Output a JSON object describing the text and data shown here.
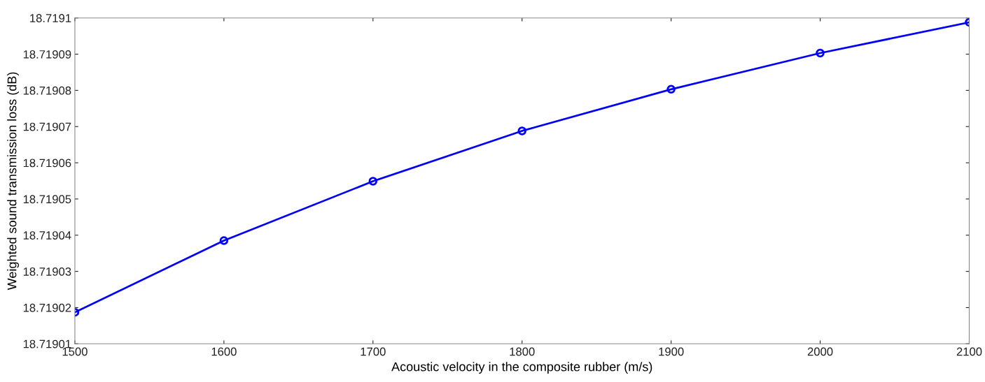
{
  "chart_data": {
    "type": "line",
    "xlabel": "Acoustic velocity in the composite rubber (m/s)",
    "ylabel": "Weighted sound transmission loss (dB)",
    "x": [
      1500,
      1600,
      1700,
      1800,
      1900,
      2000,
      2100
    ],
    "series": [
      {
        "color": "#0000ff",
        "values": [
          18.7190187,
          18.7190385,
          18.7190549,
          18.7190688,
          18.7190803,
          18.7190903,
          18.7190988
        ]
      }
    ],
    "xlim": [
      1500,
      2100
    ],
    "xticks": [
      1500,
      1600,
      1700,
      1800,
      1900,
      2000,
      2100
    ],
    "ylim": [
      18.71901,
      18.7191
    ],
    "yticks": [
      18.71901,
      18.71902,
      18.71903,
      18.71904,
      18.71905,
      18.71906,
      18.71907,
      18.71908,
      18.71909,
      18.7191
    ],
    "marker": "circle",
    "line_style": "solid",
    "grid": false,
    "legend": false
  }
}
